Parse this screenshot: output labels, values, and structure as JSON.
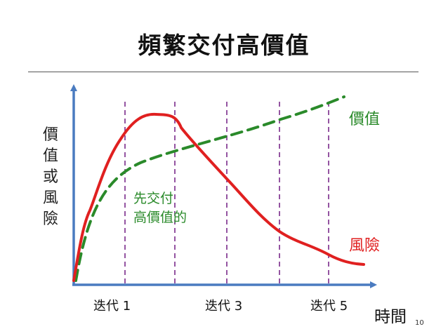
{
  "title": "頻繁交付高價值",
  "y_axis_label": [
    "價",
    "值",
    "或",
    "風",
    "險"
  ],
  "x_axis_label": "時間",
  "x_ticks": [
    "迭代 1",
    "迭代 3",
    "迭代 5"
  ],
  "curve_labels": {
    "value": "價值",
    "risk": "風險"
  },
  "annotation": [
    "先交付",
    "高價值的"
  ],
  "page_number": "10",
  "colors": {
    "value": "#2a8a2a",
    "risk": "#e02020",
    "axis": "#4a7bc0",
    "iteration_line": "#7a2a8a"
  }
}
